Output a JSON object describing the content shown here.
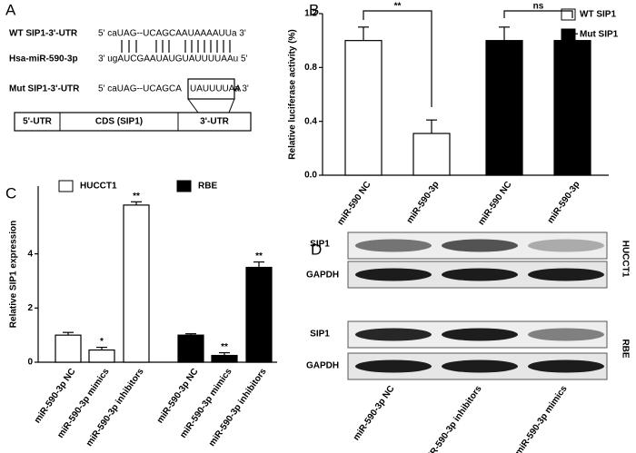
{
  "panel_labels": [
    "A",
    "B",
    "C",
    "D"
  ],
  "sequence_diagram": {
    "wt_label": "WT SIP1-3'-UTR",
    "wt_seq": "5' caUAG--UCAGCAAUAAAAUUa 3'",
    "mir_label": "Hsa-miR-590-3p",
    "mir_seq": "3' ugAUCGAAUAUGUAUUUUAAu 5'",
    "mut_label": "Mut SIP1-3'-UTR",
    "mut_seq": [
      "5' caUAG--UCAGCA",
      "UAUUUUAA",
      "a 3'"
    ],
    "gene_regions": [
      "5'-UTR",
      "CDS (SIP1)",
      "3'-UTR"
    ]
  },
  "chart_data": [
    {
      "type": "bar",
      "ylabel": "Relative luciferase activity (%)",
      "categories": [
        "miR-590 NC",
        "miR-590-3p",
        "miR-590 NC",
        "miR-590-3p"
      ],
      "series": [
        {
          "name": "WT SIP1",
          "color": "#ffffff",
          "values": [
            1.0,
            0.31,
            null,
            null
          ],
          "errors": [
            0.1,
            0.1,
            null,
            null
          ]
        },
        {
          "name": "Mut SIP1",
          "color": "#000000",
          "values": [
            null,
            null,
            1.0,
            1.0
          ],
          "errors": [
            null,
            null,
            0.1,
            0.05
          ]
        }
      ],
      "ylim": [
        0,
        1.2
      ],
      "yticks": [
        {
          "value": 0,
          "label": "0.0"
        },
        0.4,
        0.8,
        1.2
      ],
      "annotations": [
        "**",
        "ns"
      ]
    },
    {
      "type": "bar",
      "ylabel": "Relative SIP1 expression",
      "categories": [
        "miR-590-3p NC",
        "miR-590-3p mimics",
        "miR-590-3p inhibitors",
        "miR-590-3p NC",
        "miR-590-3p mimics",
        "miR-590-3p inhibitors"
      ],
      "series": [
        {
          "name": "HUCCT1",
          "color": "#ffffff",
          "values": [
            1.0,
            0.45,
            5.8,
            null,
            null,
            null
          ],
          "errors": [
            0.1,
            0.1,
            0.12,
            null,
            null,
            null
          ]
        },
        {
          "name": "RBE",
          "color": "#000000",
          "values": [
            null,
            null,
            null,
            1.0,
            0.25,
            3.5
          ],
          "errors": [
            null,
            null,
            null,
            0.05,
            0.1,
            0.2
          ]
        }
      ],
      "ylim": [
        0,
        6.5
      ],
      "yticks": [
        0,
        2,
        4
      ],
      "significance": [
        null,
        "*",
        "**",
        null,
        "**",
        "**"
      ]
    }
  ],
  "blot": {
    "rows": [
      "SIP1",
      "GAPDH",
      "SIP1",
      "GAPDH"
    ],
    "cell_lines": [
      "HUCCT1",
      "RBE"
    ],
    "lanes": [
      "miR-590-3p NC",
      "miR-590-3p inhibitors",
      "miR-590-3p mimics"
    ]
  }
}
